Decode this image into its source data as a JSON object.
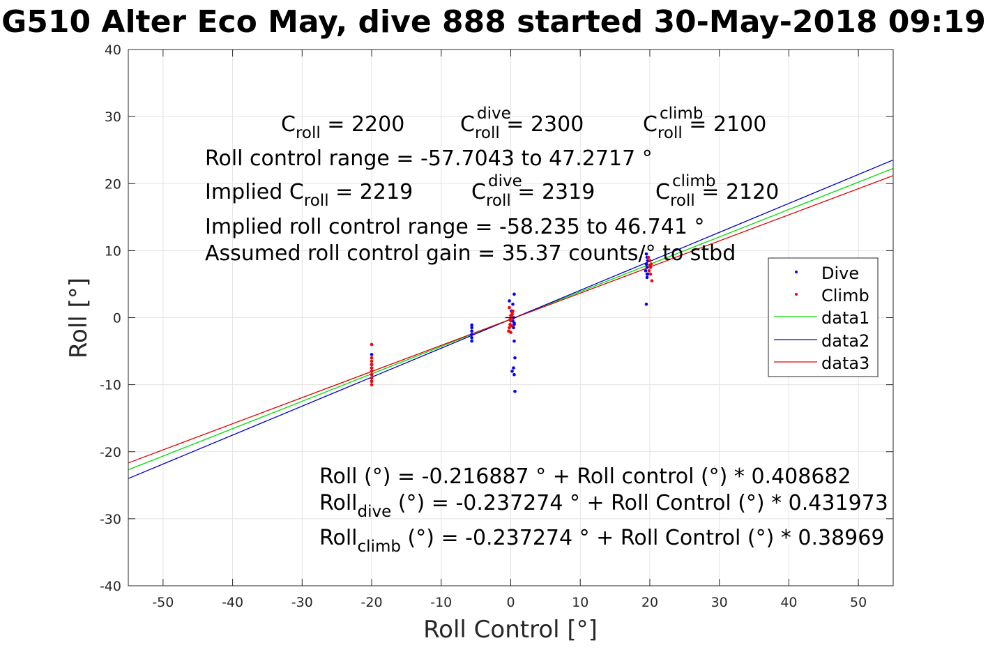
{
  "title": "G510 Alter Eco May, dive 888 started 30-May-2018 09:19",
  "chart_data": {
    "type": "scatter",
    "title": "G510 Alter Eco May, dive 888 started 30-May-2018 09:19",
    "xlabel": "Roll Control [°]",
    "ylabel": "Roll [°]",
    "xlim": [
      -55,
      55
    ],
    "ylim": [
      -40,
      40
    ],
    "xticks": [
      -50,
      -40,
      -30,
      -20,
      -10,
      0,
      10,
      20,
      30,
      40,
      50
    ],
    "yticks": [
      -40,
      -30,
      -20,
      -10,
      0,
      10,
      20,
      30,
      40
    ],
    "grid": true,
    "legend_position": "right",
    "colors": {
      "dive": "#0000ff",
      "climb": "#ff0000",
      "data1": "#00dd00",
      "data2": "#0000cc",
      "data3": "#dd0000"
    },
    "series": [
      {
        "name": "Dive",
        "kind": "points",
        "x": [
          -20,
          -20,
          -20,
          -20,
          -20,
          -20,
          -20,
          -5.6,
          -5.6,
          -5.6,
          -5.6,
          -5.6,
          -5.6,
          -0.2,
          0.3,
          0.5,
          0.1,
          0.2,
          0.4,
          0.3,
          0.5,
          0.4,
          0.5,
          0.6,
          0.4,
          0.2,
          0.5,
          0.6,
          0.5,
          19.5,
          19.6,
          19.7,
          19.5,
          19.6,
          19.4,
          19.7,
          19.6,
          19.6,
          19.5,
          19.5
        ],
        "y": [
          -5.5,
          -7.0,
          -7.5,
          -8.0,
          -8.5,
          -9.0,
          -9.5,
          -1.1,
          -1.5,
          -2.0,
          -2.5,
          -3.0,
          -3.5,
          2.5,
          2.0,
          3.5,
          1.0,
          0.5,
          0.0,
          -0.5,
          -1.0,
          -1.5,
          -3.5,
          -6.0,
          -7.5,
          -8.0,
          -8.5,
          -11.0,
          -0.8,
          9.5,
          9.0,
          8.5,
          8.0,
          7.5,
          7.0,
          6.5,
          6.0,
          6.5,
          2.0,
          8.0
        ]
      },
      {
        "name": "Climb",
        "kind": "points",
        "x": [
          -20,
          -20,
          -20,
          -20,
          -20,
          -20,
          -20,
          -20,
          -20,
          -20,
          -0.3,
          -0.2,
          -0.1,
          0.0,
          0.1,
          0.2,
          0.3,
          -0.2,
          0.0,
          0.2,
          0.1,
          0.0,
          -0.1,
          19.8,
          20.0,
          20.2,
          20.1,
          19.9,
          20.1,
          20.3,
          20.0
        ],
        "y": [
          -4.0,
          -6.0,
          -6.5,
          -7.0,
          -7.5,
          -8.0,
          -8.5,
          -9.0,
          -9.5,
          -10.0,
          -2.0,
          -1.5,
          -1.0,
          -0.5,
          0.0,
          0.5,
          1.0,
          1.5,
          -2.2,
          0.8,
          -1.2,
          0.3,
          -0.3,
          9.0,
          8.5,
          8.0,
          7.5,
          7.0,
          6.5,
          5.5,
          7.8
        ]
      },
      {
        "name": "data1",
        "kind": "line",
        "x": [
          -55,
          55
        ],
        "y": [
          -22.69,
          22.26
        ]
      },
      {
        "name": "data2",
        "kind": "line",
        "x": [
          -55,
          55
        ],
        "y": [
          -24.0,
          23.52
        ]
      },
      {
        "name": "data3",
        "kind": "line",
        "x": [
          -55,
          55
        ],
        "y": [
          -21.67,
          21.19
        ]
      }
    ],
    "annotations": {
      "constants": {
        "c_roll": {
          "base": "C",
          "sub": "roll",
          "value": " = 2200"
        },
        "c_roll_dive": {
          "base": "C",
          "sup": "dive",
          "sub": "roll",
          "value": " = 2300"
        },
        "c_roll_climb": {
          "base": "C",
          "sup": "climb",
          "sub": "roll",
          "value": " = 2100"
        }
      },
      "roll_control_range": "Roll control range = -57.7043 to 47.2717 °",
      "implied": {
        "implied_c_roll": {
          "prefix": "Implied C",
          "sub": "roll",
          "value": " = 2219"
        },
        "implied_c_roll_dive": {
          "base": "C",
          "sup": "dive",
          "sub": "roll",
          "value": " = 2319"
        },
        "implied_c_roll_climb": {
          "base": "C",
          "sup": "climb",
          "sub": "roll",
          "value": " = 2120"
        }
      },
      "implied_range": "Implied roll control range = -58.235 to 46.741 °",
      "gain": "Assumed roll control gain = 35.37 counts/° to stbd",
      "fit_all": "Roll (°) = -0.216887 ° + Roll control (°) * 0.408682",
      "fit_dive": {
        "base": "Roll",
        "sub": "dive",
        "rest": " (°) = -0.237274 ° + Roll Control (°) * 0.431973"
      },
      "fit_climb": {
        "base": "Roll",
        "sub": "climb",
        "rest": " (°) = -0.237274 ° + Roll Control (°) * 0.38969"
      }
    }
  }
}
